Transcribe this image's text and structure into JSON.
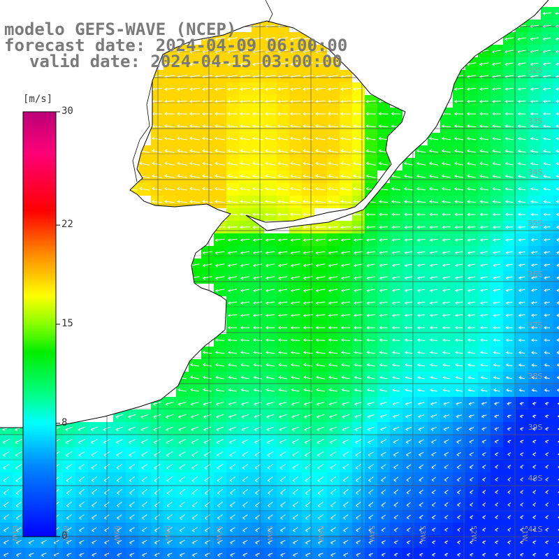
{
  "title": {
    "line1": "modelo GEFS-WAVE (NCEP)",
    "line2": "forecast date: 2024-04-09 06:00:00",
    "line3": "valid date: 2024-04-15 03:00:00"
  },
  "colorbar": {
    "units": "[m/s]",
    "min": 0,
    "max": 30,
    "ticks": [
      {
        "value": 30,
        "label": "30"
      },
      {
        "value": 22,
        "label": "22"
      },
      {
        "value": 15,
        "label": "15"
      },
      {
        "value": 8,
        "label": "8"
      },
      {
        "value": 0,
        "label": "0"
      }
    ],
    "stops": [
      {
        "value": 0,
        "color": "#0000ff"
      },
      {
        "value": 5,
        "color": "#0088ff"
      },
      {
        "value": 8,
        "color": "#00ffff"
      },
      {
        "value": 10,
        "color": "#00ff88"
      },
      {
        "value": 13,
        "color": "#00ee00"
      },
      {
        "value": 15,
        "color": "#88ff00"
      },
      {
        "value": 17,
        "color": "#ffff00"
      },
      {
        "value": 20,
        "color": "#ff8800"
      },
      {
        "value": 23,
        "color": "#ff0000"
      },
      {
        "value": 27,
        "color": "#ff0077"
      },
      {
        "value": 30,
        "color": "#bb0077"
      }
    ]
  },
  "latitude_labels": [
    "32S",
    "33S",
    "34S",
    "35S",
    "36S",
    "37S",
    "38S",
    "39S",
    "40S",
    "41S"
  ],
  "longitude_labels": [
    "61W",
    "60W",
    "59W",
    "58W",
    "57W",
    "56W",
    "55W",
    "54W",
    "53W",
    "52W",
    "51W"
  ],
  "colors": {
    "land": "#ffffff",
    "coastline": "#000000",
    "grid": "#555555",
    "arrows": "#ffffff",
    "text": "#7a7a7a"
  }
}
